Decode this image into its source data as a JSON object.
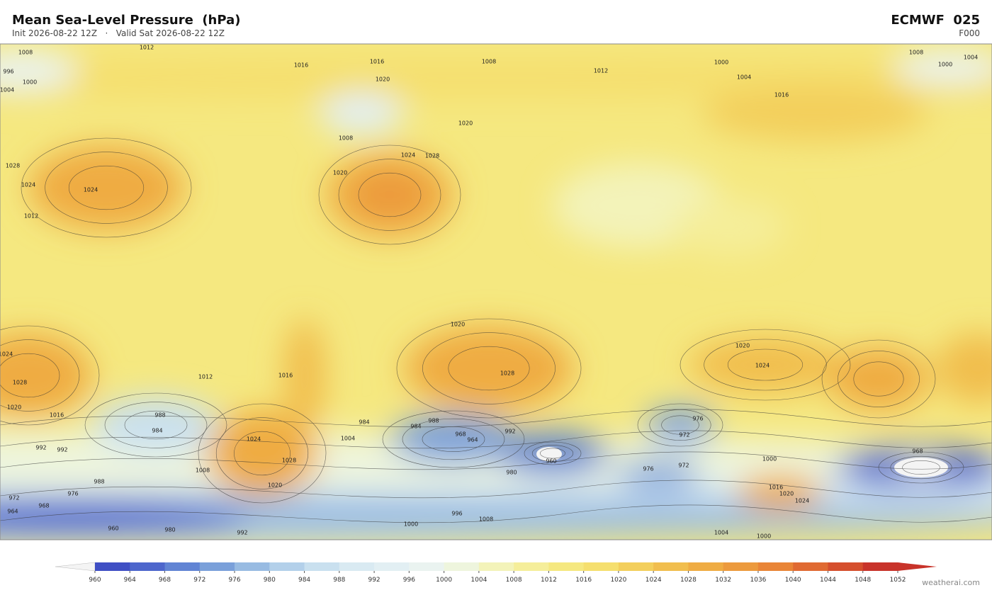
{
  "header": {
    "title": "Mean Sea-Level Pressure  (hPa)",
    "subtitle": "Init 2026-08-22 12Z   ·   Valid Sat 2026-08-22 12Z",
    "model": "ECMWF  025",
    "step": "F000"
  },
  "contour_labels": [
    1008,
    1012,
    996,
    1000,
    1004,
    1016,
    1016,
    1020,
    1008,
    1012,
    1000,
    1004,
    1008,
    1004,
    1000,
    1016,
    1020,
    1024,
    1028,
    1020,
    1028,
    1024,
    1024,
    1012,
    1008,
    1020,
    1020,
    1024,
    1028,
    1024,
    1028,
    1020,
    1016,
    1012,
    1016,
    988,
    984,
    992,
    992,
    984,
    988,
    984,
    992,
    976,
    972,
    968,
    964,
    960,
    1024,
    1028,
    1020,
    1000,
    968,
    980,
    976,
    972,
    1004,
    1008,
    988,
    976,
    972,
    968,
    964,
    960,
    980,
    992,
    1000,
    1004,
    1000,
    996,
    1008,
    1016,
    1020,
    1024
  ],
  "colorbar": {
    "ticks": [
      960,
      964,
      968,
      972,
      976,
      980,
      984,
      988,
      992,
      996,
      1000,
      1004,
      1008,
      1012,
      1016,
      1020,
      1024,
      1028,
      1032,
      1036,
      1040,
      1044,
      1048,
      1052
    ],
    "colors": [
      "#3f4fc4",
      "#4d66cc",
      "#6184d4",
      "#7aa0da",
      "#98bbe2",
      "#b3d0ea",
      "#c9e0ef",
      "#d9eaf2",
      "#e2eff3",
      "#eaf3f0",
      "#eef5dd",
      "#f3f3b9",
      "#f5ee9a",
      "#f5e880",
      "#f5df6e",
      "#f3cf5c",
      "#f1be4e",
      "#efac43",
      "#ec9a3d",
      "#e98537",
      "#e06a32",
      "#d54f2d",
      "#c8332a"
    ],
    "under_color": "#f4f4f4",
    "over_color": "#c8332a"
  },
  "footer": "weatherai.com"
}
